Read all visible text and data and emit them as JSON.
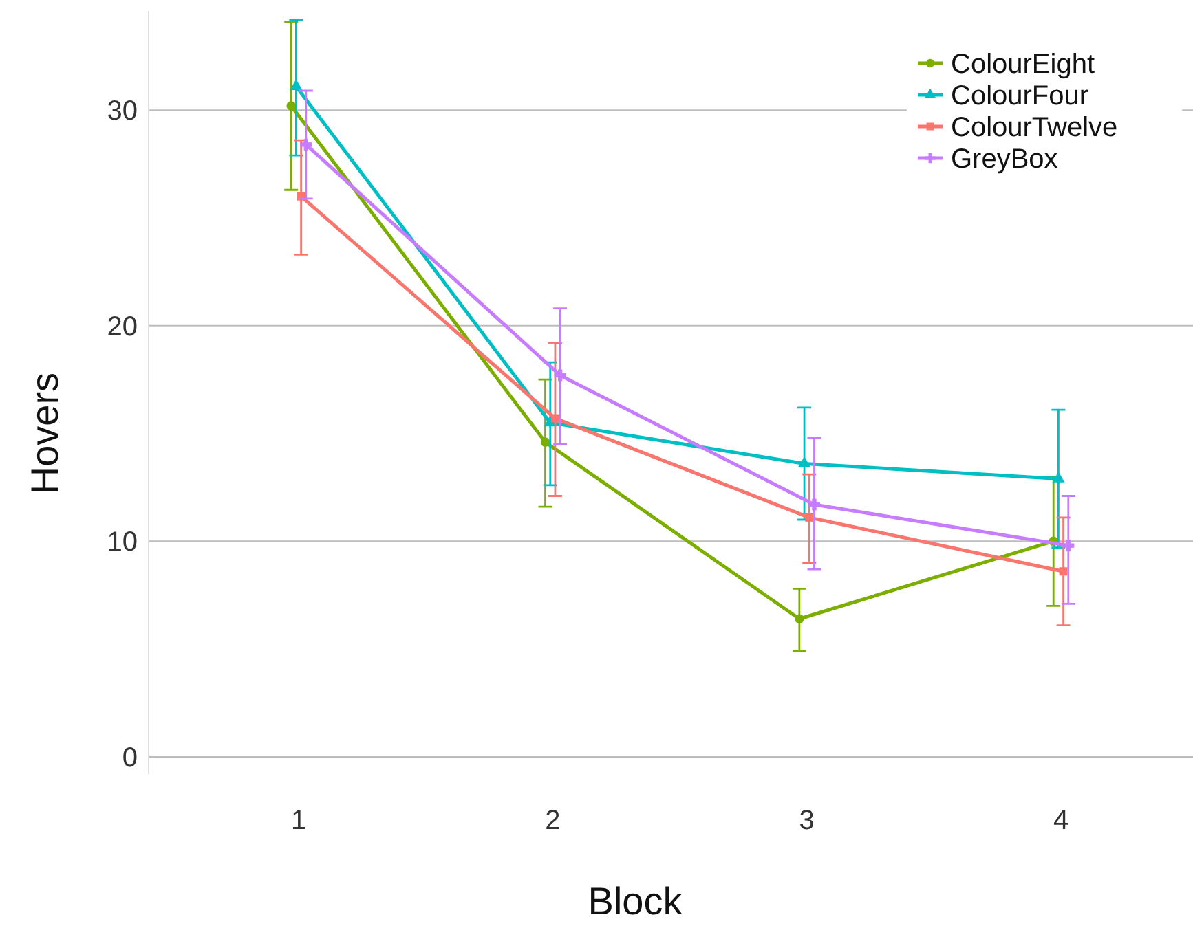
{
  "chart_data": {
    "type": "line",
    "xlabel": "Block",
    "ylabel": "Hovers",
    "categories": [
      "1",
      "2",
      "3",
      "4"
    ],
    "ylim": [
      -0.8,
      34.6
    ],
    "yticks": [
      0,
      10,
      20,
      30
    ],
    "grid": "y",
    "legend": "top right",
    "line_style": "solid",
    "series": [
      {
        "name": "ColourEight",
        "color": "#7cae00",
        "marker": "circle",
        "values": [
          30.2,
          14.6,
          6.4,
          10.0
        ],
        "errors": [
          [
            26.3,
            34.1
          ],
          [
            11.6,
            17.5
          ],
          [
            4.9,
            7.8
          ],
          [
            7.0,
            13.0
          ]
        ]
      },
      {
        "name": "ColourFour",
        "color": "#00bfc4",
        "marker": "triangle",
        "values": [
          31.1,
          15.5,
          13.6,
          12.9
        ],
        "errors": [
          [
            27.9,
            34.2
          ],
          [
            12.6,
            18.3
          ],
          [
            11.0,
            16.2
          ],
          [
            9.7,
            16.1
          ]
        ]
      },
      {
        "name": "ColourTwelve",
        "color": "#f8766d",
        "marker": "square",
        "values": [
          26.0,
          15.7,
          11.1,
          8.6
        ],
        "errors": [
          [
            23.3,
            28.6
          ],
          [
            12.1,
            19.2
          ],
          [
            9.0,
            13.1
          ],
          [
            6.1,
            11.1
          ]
        ]
      },
      {
        "name": "GreyBox",
        "color": "#c77cff",
        "marker": "cross",
        "values": [
          28.4,
          17.7,
          11.7,
          9.8
        ],
        "errors": [
          [
            25.9,
            30.9
          ],
          [
            14.5,
            20.8
          ],
          [
            8.7,
            14.8
          ],
          [
            7.1,
            12.1
          ]
        ]
      }
    ]
  }
}
